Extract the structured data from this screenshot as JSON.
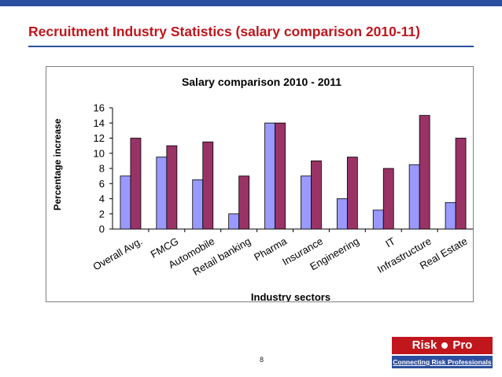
{
  "slide": {
    "title": "Recruitment Industry Statistics (salary comparison 2010-11)",
    "page_number": "8",
    "logo": {
      "word1": "Risk",
      "word2": "Pro",
      "tagline": "Connecting Risk Professionals"
    }
  },
  "colors": {
    "series_2010": "#9999ff",
    "series_2011": "#993366",
    "accent_red": "#c0161c",
    "accent_blue": "#2b4f9e"
  },
  "chart_data": {
    "type": "bar",
    "title": "Salary comparison 2010 - 2011",
    "xlabel": "Industry sectors",
    "ylabel": "Percentage increase",
    "ylim": [
      0,
      16
    ],
    "yticks": [
      0,
      2,
      4,
      6,
      8,
      10,
      12,
      14,
      16
    ],
    "grid": false,
    "legend": "none",
    "categories": [
      "Overall Avg.",
      "FMCG",
      "Automobile",
      "Retail banking",
      "Pharma",
      "Insurance",
      "Engineering",
      "IT",
      "Infrastructure",
      "Real Estate"
    ],
    "series": [
      {
        "values": [
          7,
          9.5,
          6.5,
          2,
          14,
          7,
          4,
          2.5,
          8.5,
          3.5
        ]
      },
      {
        "values": [
          12,
          11,
          11.5,
          7,
          14,
          9,
          9.5,
          8,
          15,
          12
        ]
      }
    ]
  }
}
